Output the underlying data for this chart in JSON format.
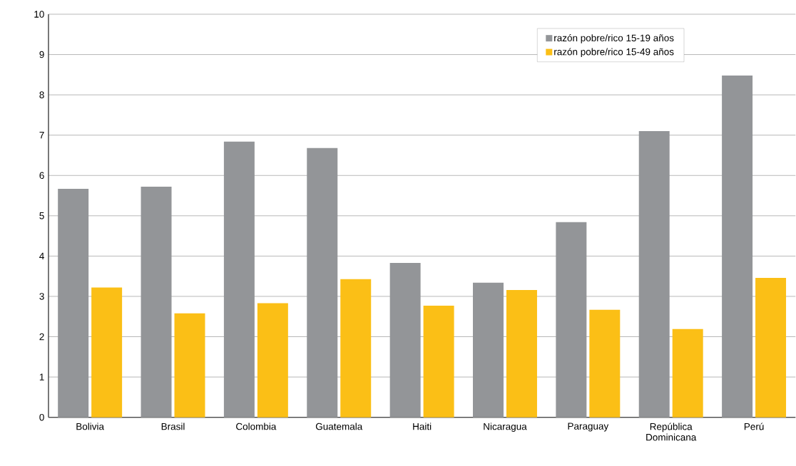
{
  "chart_data": {
    "type": "bar",
    "categories": [
      "Bolivia",
      "Brasil",
      "Colombia",
      "Guatemala",
      "Haiti",
      "Nicaragua",
      "Paraguay",
      "República Dominicana",
      "Perú"
    ],
    "series": [
      {
        "name": "razón pobre/rico 15-19 años",
        "color": "#939598",
        "values": [
          5.67,
          5.72,
          6.84,
          6.68,
          3.83,
          3.34,
          4.84,
          7.1,
          8.48
        ]
      },
      {
        "name": "razón pobre/rico 15-49 años",
        "color": "#fbbf16",
        "values": [
          3.22,
          2.58,
          2.83,
          3.43,
          2.77,
          3.16,
          2.67,
          2.19,
          3.46
        ]
      }
    ],
    "ylim": [
      0,
      10
    ],
    "yticks": [
      0,
      1,
      2,
      3,
      4,
      5,
      6,
      7,
      8,
      9,
      10
    ],
    "grid": "y",
    "legend": "top right"
  }
}
